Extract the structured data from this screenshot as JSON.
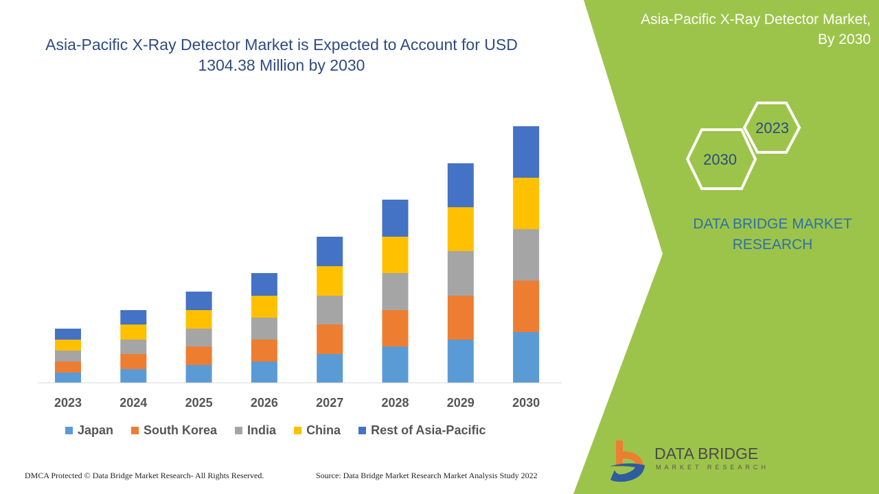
{
  "title": "Asia-Pacific X-Ray Detector Market is Expected to Account for USD 1304.38 Million by 2030",
  "side_panel": {
    "title_line1": "Asia-Pacific X-Ray Detector Market,",
    "title_line2": "By 2030",
    "hex_a": "2023",
    "hex_b": "2030",
    "brand_line1": "DATA BRIDGE MARKET",
    "brand_line2": "RESEARCH",
    "panel_color": "#9dc44a"
  },
  "footer": {
    "left": "DMCA Protected © Data Bridge Market Research- All Rights Reserved.",
    "right": "Source: Data Bridge Market Research Market Analysis Study 2022"
  },
  "logo": {
    "name": "DATA BRIDGE",
    "sub": "MARKET RESEARCH"
  },
  "chart_data": {
    "type": "bar",
    "stacked": true,
    "grid": false,
    "legend": "bottom",
    "y_axis_labels": false,
    "categories": [
      "2023",
      "2024",
      "2025",
      "2026",
      "2027",
      "2028",
      "2029",
      "2030"
    ],
    "series": [
      {
        "name": "Japan",
        "color": "#5b9bd5",
        "values": [
          15,
          20,
          26,
          31,
          42,
          53,
          63,
          74
        ]
      },
      {
        "name": "South Korea",
        "color": "#ed7d31",
        "values": [
          16,
          22,
          27,
          32,
          43,
          53,
          64,
          75
        ]
      },
      {
        "name": "India",
        "color": "#a5a5a5",
        "values": [
          16,
          21,
          26,
          32,
          42,
          54,
          65,
          75
        ]
      },
      {
        "name": "China",
        "color": "#ffc000",
        "values": [
          16,
          22,
          27,
          32,
          43,
          53,
          64,
          75
        ]
      },
      {
        "name": "Rest of Asia-Pacific",
        "color": "#4472c4",
        "values": [
          16,
          21,
          27,
          33,
          43,
          54,
          64,
          75
        ]
      }
    ]
  }
}
